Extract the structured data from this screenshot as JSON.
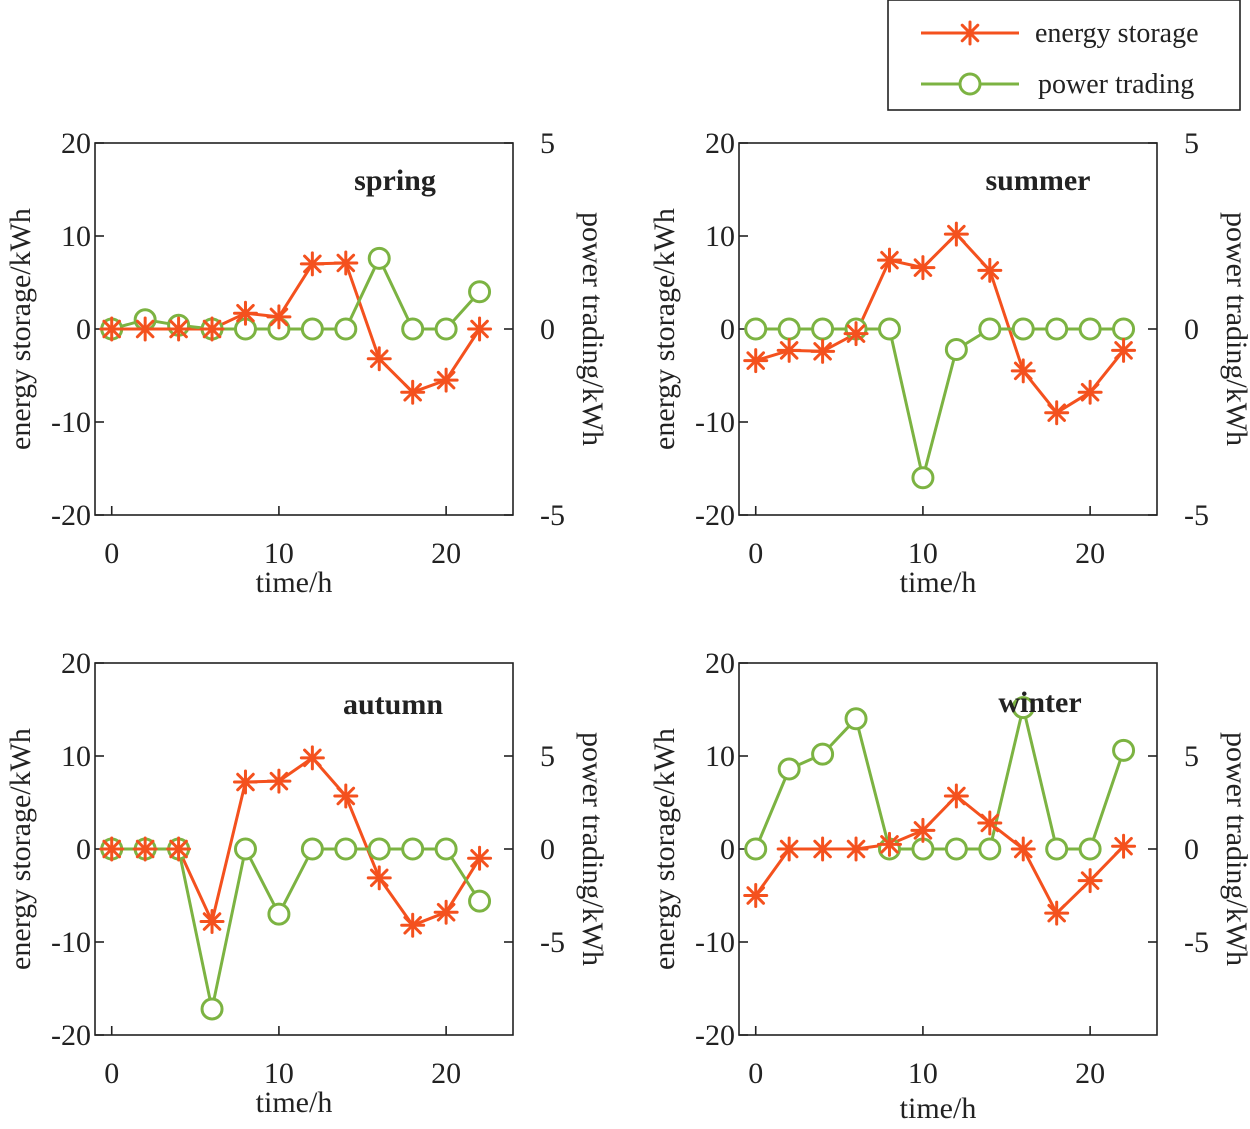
{
  "colors": {
    "energy": "#F4511E",
    "trading": "#7CB342",
    "axis": "#222222"
  },
  "legend": {
    "items": [
      {
        "label": "energy storage",
        "marker": "asterisk",
        "color": "#F4511E"
      },
      {
        "label": "power trading",
        "marker": "circle",
        "color": "#7CB342"
      }
    ]
  },
  "chart_data": [
    {
      "type": "line",
      "title": "spring",
      "xlabel": "time/h",
      "ylabel_left": "energy storage/kWh",
      "ylabel_right": "power trading/kWh",
      "x": [
        0,
        2,
        4,
        6,
        8,
        10,
        12,
        14,
        16,
        18,
        20,
        22
      ],
      "xlim": [
        -1,
        24
      ],
      "xticks": [
        0,
        10,
        20
      ],
      "ylim_left": [
        -20,
        20
      ],
      "yticks_left": [
        -20,
        -10,
        0,
        10,
        20
      ],
      "ylim_right": [
        -5,
        5
      ],
      "yticks_right": [
        -5,
        0,
        5
      ],
      "series": [
        {
          "name": "energy storage",
          "axis": "left",
          "values": [
            0,
            0,
            0,
            0,
            1.7,
            1.3,
            7,
            7.1,
            -3.2,
            -6.8,
            -5.5,
            0
          ]
        },
        {
          "name": "power trading",
          "axis": "right",
          "values": [
            0,
            0.25,
            0.1,
            0,
            0,
            0,
            0,
            0,
            1.9,
            0,
            0,
            1.0
          ]
        }
      ]
    },
    {
      "type": "line",
      "title": "summer",
      "xlabel": "time/h",
      "ylabel_left": "energy storage/kWh",
      "ylabel_right": "power trading/kWh",
      "x": [
        0,
        2,
        4,
        6,
        8,
        10,
        12,
        14,
        16,
        18,
        20,
        22
      ],
      "xlim": [
        -1,
        24
      ],
      "xticks": [
        0,
        10,
        20
      ],
      "ylim_left": [
        -20,
        20
      ],
      "yticks_left": [
        -20,
        -10,
        0,
        10,
        20
      ],
      "ylim_right": [
        -5,
        5
      ],
      "yticks_right": [
        -5,
        0,
        5
      ],
      "series": [
        {
          "name": "energy storage",
          "axis": "left",
          "values": [
            -3.4,
            -2.3,
            -2.4,
            -0.5,
            7.4,
            6.6,
            10.2,
            6.3,
            -4.5,
            -9.0,
            -6.8,
            -2.3
          ]
        },
        {
          "name": "power trading",
          "axis": "right",
          "values": [
            0,
            0,
            0,
            0,
            0,
            -4.0,
            -0.55,
            0,
            0,
            0,
            0,
            0
          ]
        }
      ]
    },
    {
      "type": "line",
      "title": "autumn",
      "xlabel": "time/h",
      "ylabel_left": "energy storage/kWh",
      "ylabel_right": "power trading/kWh",
      "x": [
        0,
        2,
        4,
        6,
        8,
        10,
        12,
        14,
        16,
        18,
        20,
        22
      ],
      "xlim": [
        -1,
        24
      ],
      "xticks": [
        0,
        10,
        20
      ],
      "ylim_left": [
        -20,
        20
      ],
      "yticks_left": [
        -20,
        -10,
        0,
        10,
        20
      ],
      "ylim_right": [
        -10,
        10
      ],
      "yticks_right": [
        -5,
        0,
        5
      ],
      "series": [
        {
          "name": "energy storage",
          "axis": "left",
          "values": [
            0,
            0,
            0,
            -7.8,
            7.2,
            7.3,
            9.8,
            5.7,
            -3.1,
            -8.2,
            -6.8,
            -1.0
          ]
        },
        {
          "name": "power trading",
          "axis": "right",
          "values": [
            0,
            0,
            0,
            -8.6,
            0,
            -3.5,
            0,
            0,
            0,
            0,
            0,
            -2.8
          ]
        }
      ]
    },
    {
      "type": "line",
      "title": "winter",
      "xlabel": "time/h",
      "ylabel_left": "energy storage/kWh",
      "ylabel_right": "power trading/kWh",
      "x": [
        0,
        2,
        4,
        6,
        8,
        10,
        12,
        14,
        16,
        18,
        20,
        22
      ],
      "xlim": [
        -1,
        24
      ],
      "xticks": [
        0,
        10,
        20
      ],
      "ylim_left": [
        -20,
        20
      ],
      "yticks_left": [
        -20,
        -10,
        0,
        10,
        20
      ],
      "ylim_right": [
        -10,
        10
      ],
      "yticks_right": [
        -5,
        0,
        5
      ],
      "series": [
        {
          "name": "energy storage",
          "axis": "left",
          "values": [
            -5.0,
            0,
            0,
            0,
            0.5,
            2.0,
            5.7,
            2.8,
            0,
            -6.9,
            -3.4,
            0.3
          ]
        },
        {
          "name": "power trading",
          "axis": "right",
          "values": [
            0,
            4.3,
            5.1,
            7.0,
            0,
            0,
            0,
            0,
            7.6,
            0,
            0,
            5.3
          ]
        }
      ]
    }
  ]
}
